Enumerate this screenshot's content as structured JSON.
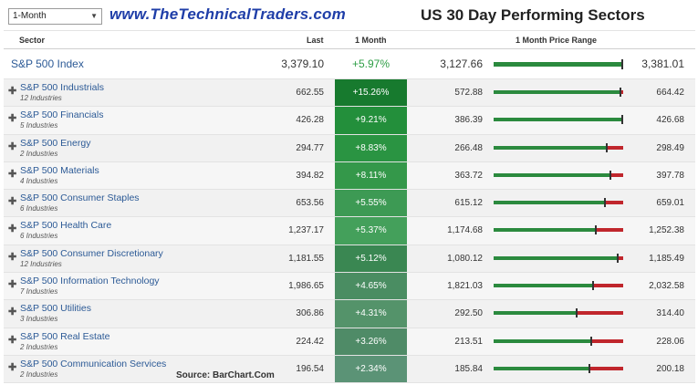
{
  "toolbar": {
    "period": "1-Month"
  },
  "site_url": "www.TheTechnicalTraders.com",
  "title": "US 30 Day Performing Sectors",
  "columns": {
    "sector": "Sector",
    "last": "Last",
    "change": "1 Month",
    "range": "1 Month Price Range"
  },
  "index": {
    "name": "S&P 500 Index",
    "last": "3,379.10",
    "change": "+5.97%",
    "low": "3,127.66",
    "high": "3,381.01",
    "position": 0.99
  },
  "sectors": [
    {
      "name": "S&P 500 Industrials",
      "sub": "12 Industries",
      "last": "662.55",
      "change": "+15.26%",
      "low": "572.88",
      "high": "664.42",
      "position": 0.98,
      "color": "#177a2e"
    },
    {
      "name": "S&P 500 Financials",
      "sub": "5 Industries",
      "last": "426.28",
      "change": "+9.21%",
      "low": "386.39",
      "high": "426.68",
      "position": 0.99,
      "color": "#238f3b"
    },
    {
      "name": "S&P 500 Energy",
      "sub": "2 Industries",
      "last": "294.77",
      "change": "+8.83%",
      "low": "266.48",
      "high": "298.49",
      "position": 0.87,
      "color": "#2a9442"
    },
    {
      "name": "S&P 500 Materials",
      "sub": "4 Industries",
      "last": "394.82",
      "change": "+8.11%",
      "low": "363.72",
      "high": "397.78",
      "position": 0.9,
      "color": "#34984a"
    },
    {
      "name": "S&P 500 Consumer Staples",
      "sub": "6 Industries",
      "last": "653.56",
      "change": "+5.55%",
      "low": "615.12",
      "high": "659.01",
      "position": 0.86,
      "color": "#3d9a54"
    },
    {
      "name": "S&P 500 Health Care",
      "sub": "6 Industries",
      "last": "1,237.17",
      "change": "+5.37%",
      "low": "1,174.68",
      "high": "1,252.38",
      "position": 0.79,
      "color": "#44a05b"
    },
    {
      "name": "S&P 500 Consumer Discretionary",
      "sub": "12 Industries",
      "last": "1,181.55",
      "change": "+5.12%",
      "low": "1,080.12",
      "high": "1,185.49",
      "position": 0.96,
      "color": "#3a8752"
    },
    {
      "name": "S&P 500 Information Technology",
      "sub": "7 Industries",
      "last": "1,986.65",
      "change": "+4.65%",
      "low": "1,821.03",
      "high": "2,032.58",
      "position": 0.77,
      "color": "#4a8d62"
    },
    {
      "name": "S&P 500 Utilities",
      "sub": "3 Industries",
      "last": "306.86",
      "change": "+4.31%",
      "low": "292.50",
      "high": "314.40",
      "position": 0.64,
      "color": "#54936a"
    },
    {
      "name": "S&P 500 Real Estate",
      "sub": "2 Industries",
      "last": "224.42",
      "change": "+3.26%",
      "low": "213.51",
      "high": "228.06",
      "position": 0.75,
      "color": "#4f8b67"
    },
    {
      "name": "S&P 500 Communication Services",
      "sub": "2 Industries",
      "last": "196.54",
      "change": "+2.34%",
      "low": "185.84",
      "high": "200.18",
      "position": 0.74,
      "color": "#5b9376"
    }
  ],
  "source": "Source: BarChart.Com",
  "colors": {
    "range_up": "#2b8a3e",
    "range_down": "#c0262c",
    "url": "#1f3ea8",
    "link": "#2c5a96"
  }
}
